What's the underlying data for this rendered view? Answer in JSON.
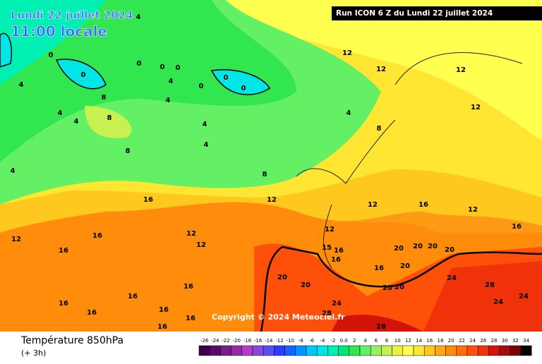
{
  "header": {
    "date": "Lundi 22 juillet 2024",
    "time": "11:00 locale",
    "run": "Run ICON 6 Z du Lundi 22 juillet 2024"
  },
  "map": {
    "copyright": "Copyright © 2024 Meteociel.fr",
    "contour_labels": [
      4,
      0,
      0,
      0,
      0,
      0,
      4,
      0,
      0,
      0,
      4,
      8,
      4,
      4,
      4,
      8,
      4,
      4,
      8,
      4,
      8,
      12,
      12,
      12,
      12,
      8,
      4,
      16,
      12,
      12,
      16,
      12,
      16,
      12,
      16,
      16,
      12,
      12,
      12,
      15,
      16,
      20,
      20,
      20,
      20,
      16,
      16,
      20,
      20,
      20,
      24,
      28,
      24,
      24,
      24,
      28,
      20,
      20,
      16,
      16,
      16,
      16,
      16,
      16,
      16,
      28
    ]
  },
  "legend": {
    "title": "Température 850hPa",
    "step": "(+ 3h)",
    "ticks": [
      -26,
      -24,
      -22,
      -20,
      -18,
      -16,
      -14,
      -12,
      -10,
      -8,
      -6,
      -4,
      -2,
      {
        "value": 0,
        "label": "0.0"
      },
      2,
      4,
      6,
      8,
      10,
      12,
      14,
      16,
      18,
      20,
      22,
      24,
      26,
      28,
      30,
      32,
      34
    ],
    "colors": [
      "#3c0046",
      "#5a0a6e",
      "#7a1e8c",
      "#962aa8",
      "#b43cc8",
      "#8c46dc",
      "#5a50f0",
      "#2d3cff",
      "#1464ff",
      "#0096ff",
      "#00c8ff",
      "#00e6e6",
      "#00f0b4",
      "#00e678",
      "#32e650",
      "#64f064",
      "#96f064",
      "#c8f050",
      "#f0f03c",
      "#ffff50",
      "#ffe632",
      "#ffc81e",
      "#ffaa14",
      "#ff8c0a",
      "#ff6e0a",
      "#ff500a",
      "#f0320a",
      "#d2140a",
      "#aa0a0a",
      "#780505",
      "#000000"
    ]
  }
}
